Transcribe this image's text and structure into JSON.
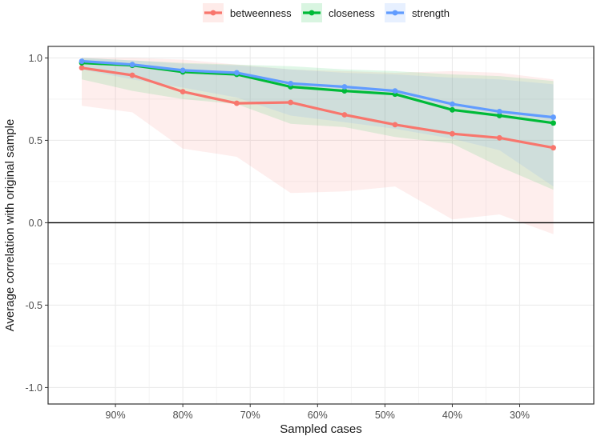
{
  "chart_data": {
    "type": "line",
    "title": "",
    "xlabel": "Sampled cases",
    "ylabel": "Average correlation with original sample",
    "x": [
      95,
      87.5,
      80,
      72,
      64,
      56,
      48.5,
      40,
      33,
      25
    ],
    "xlim": [
      100,
      19
    ],
    "ylim": [
      -1.1,
      1.07
    ],
    "x_ticks": [
      {
        "value": 90,
        "label": "90%"
      },
      {
        "value": 80,
        "label": "80%"
      },
      {
        "value": 70,
        "label": "70%"
      },
      {
        "value": 60,
        "label": "60%"
      },
      {
        "value": 50,
        "label": "50%"
      },
      {
        "value": 40,
        "label": "40%"
      },
      {
        "value": 30,
        "label": "30%"
      }
    ],
    "y_ticks": [
      {
        "value": 1.0,
        "label": "1.0"
      },
      {
        "value": 0.5,
        "label": "0.5"
      },
      {
        "value": 0.0,
        "label": "0.0"
      },
      {
        "value": -0.5,
        "label": "-0.5"
      },
      {
        "value": -1.0,
        "label": "-1.0"
      }
    ],
    "reference_line": 0,
    "grid": true,
    "legend_position": "top",
    "series": [
      {
        "name": "betweenness",
        "color": "#f8766d",
        "values": [
          0.94,
          0.895,
          0.795,
          0.725,
          0.73,
          0.655,
          0.595,
          0.54,
          0.515,
          0.455
        ],
        "lower": [
          0.71,
          0.67,
          0.45,
          0.4,
          0.18,
          0.19,
          0.22,
          0.02,
          0.05,
          -0.07
        ],
        "upper": [
          1.0,
          1.0,
          0.99,
          0.96,
          0.93,
          0.92,
          0.91,
          0.92,
          0.91,
          0.87
        ]
      },
      {
        "name": "closeness",
        "color": "#00ba38",
        "values": [
          0.97,
          0.955,
          0.915,
          0.9,
          0.825,
          0.8,
          0.78,
          0.685,
          0.65,
          0.605
        ],
        "lower": [
          0.87,
          0.8,
          0.75,
          0.72,
          0.6,
          0.58,
          0.52,
          0.48,
          0.34,
          0.2
        ],
        "upper": [
          1.0,
          0.985,
          0.97,
          0.96,
          0.95,
          0.93,
          0.92,
          0.9,
          0.89,
          0.86
        ]
      },
      {
        "name": "strength",
        "color": "#619cff",
        "values": [
          0.98,
          0.96,
          0.925,
          0.91,
          0.845,
          0.825,
          0.8,
          0.72,
          0.675,
          0.64
        ],
        "lower": [
          0.93,
          0.87,
          0.82,
          0.76,
          0.65,
          0.61,
          0.57,
          0.51,
          0.44,
          0.22
        ],
        "upper": [
          1.0,
          0.985,
          0.965,
          0.955,
          0.93,
          0.91,
          0.9,
          0.88,
          0.87,
          0.84
        ]
      }
    ]
  }
}
